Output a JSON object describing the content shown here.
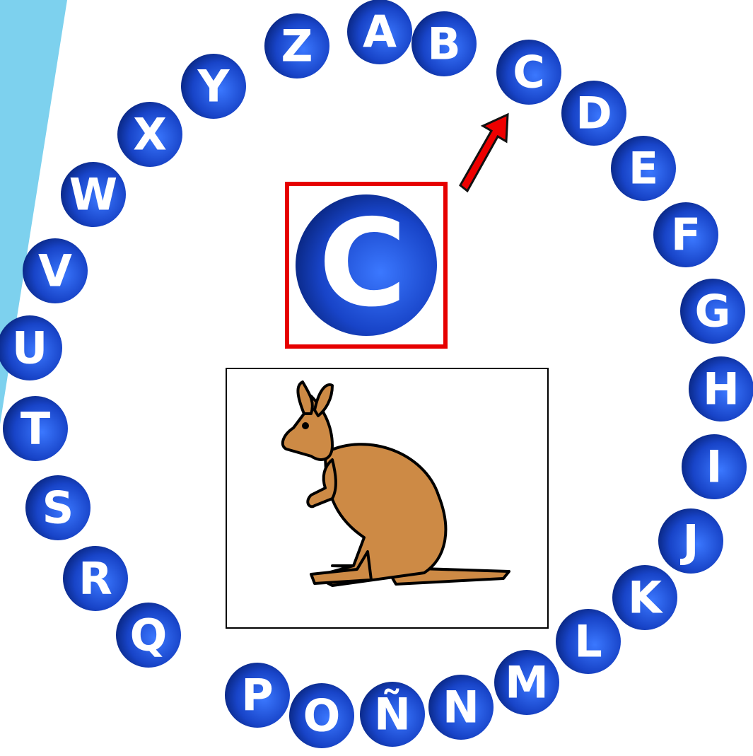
{
  "letters": [
    "A",
    "B",
    "C",
    "D",
    "E",
    "F",
    "G",
    "H",
    "I",
    "J",
    "K",
    "L",
    "M",
    "N",
    "Ñ",
    "O",
    "P",
    "Q",
    "R",
    "S",
    "T",
    "U",
    "V",
    "W",
    "X",
    "Y",
    "Z"
  ],
  "highlight": {
    "letter": "C"
  }
}
